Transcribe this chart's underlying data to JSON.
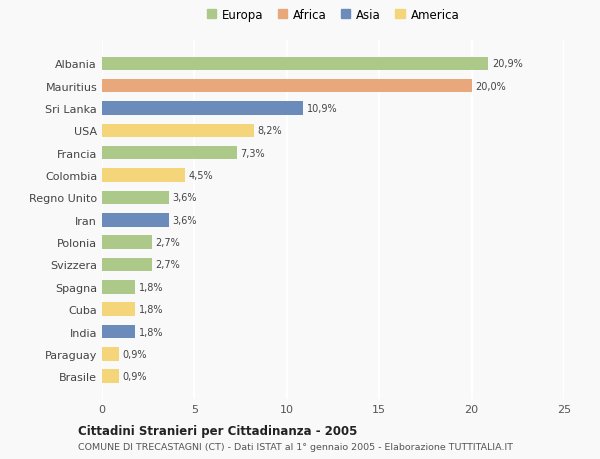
{
  "countries": [
    "Albania",
    "Mauritius",
    "Sri Lanka",
    "USA",
    "Francia",
    "Colombia",
    "Regno Unito",
    "Iran",
    "Polonia",
    "Svizzera",
    "Spagna",
    "Cuba",
    "India",
    "Paraguay",
    "Brasile"
  ],
  "values": [
    20.9,
    20.0,
    10.9,
    8.2,
    7.3,
    4.5,
    3.6,
    3.6,
    2.7,
    2.7,
    1.8,
    1.8,
    1.8,
    0.9,
    0.9
  ],
  "labels": [
    "20,9%",
    "20,0%",
    "10,9%",
    "8,2%",
    "7,3%",
    "4,5%",
    "3,6%",
    "3,6%",
    "2,7%",
    "2,7%",
    "1,8%",
    "1,8%",
    "1,8%",
    "0,9%",
    "0,9%"
  ],
  "continents": [
    "Europa",
    "Africa",
    "Asia",
    "America",
    "Europa",
    "America",
    "Europa",
    "Asia",
    "Europa",
    "Europa",
    "Europa",
    "America",
    "Asia",
    "America",
    "America"
  ],
  "colors": {
    "Europa": "#adc98a",
    "Africa": "#e8a87c",
    "Asia": "#6b8cba",
    "America": "#f5d57a"
  },
  "legend_order": [
    "Europa",
    "Africa",
    "Asia",
    "America"
  ],
  "xlim": [
    0,
    25
  ],
  "xticks": [
    0,
    5,
    10,
    15,
    20,
    25
  ],
  "title": "Cittadini Stranieri per Cittadinanza - 2005",
  "subtitle": "COMUNE DI TRECASTAGNI (CT) - Dati ISTAT al 1° gennaio 2005 - Elaborazione TUTTITALIA.IT",
  "background_color": "#f9f9f9",
  "grid_color": "#ffffff",
  "bar_height": 0.6
}
